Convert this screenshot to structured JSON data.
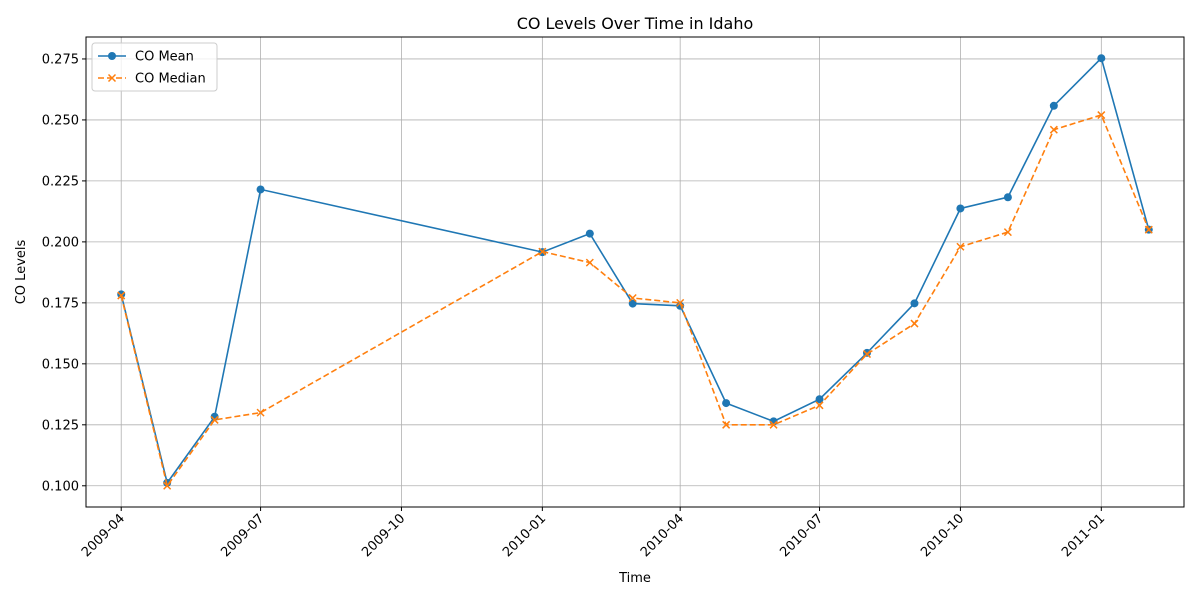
{
  "chart_data": {
    "type": "line",
    "title": "CO Levels Over Time in Idaho",
    "xlabel": "Time",
    "ylabel": "CO Levels",
    "x": [
      "2009-04-01",
      "2009-05-01",
      "2009-06-01",
      "2009-07-01",
      "2010-01-01",
      "2010-02-01",
      "2010-03-01",
      "2010-04-01",
      "2010-05-01",
      "2010-06-01",
      "2010-07-01",
      "2010-08-01",
      "2010-09-01",
      "2010-10-01",
      "2010-11-01",
      "2010-12-01",
      "2011-01-01",
      "2011-02-01"
    ],
    "series": [
      {
        "name": "CO Mean",
        "color": "#1f77b4",
        "marker": "circle",
        "linestyle": "solid",
        "values": [
          0.1785,
          0.1012,
          0.1283,
          0.2215,
          0.1958,
          0.2034,
          0.1747,
          0.1738,
          0.1339,
          0.1264,
          0.1355,
          0.1545,
          0.1748,
          0.2137,
          0.2183,
          0.2558,
          0.2753,
          0.205
        ]
      },
      {
        "name": "CO Median",
        "color": "#ff7f0e",
        "marker": "x",
        "linestyle": "dashed",
        "values": [
          0.178,
          0.1,
          0.127,
          0.13,
          0.196,
          0.1915,
          0.177,
          0.175,
          0.125,
          0.125,
          0.133,
          0.154,
          0.1665,
          0.198,
          0.204,
          0.246,
          0.252,
          0.205
        ]
      }
    ],
    "x_ticks": [
      "2009-04",
      "2009-07",
      "2009-10",
      "2010-01",
      "2010-04",
      "2010-07",
      "2010-10",
      "2011-01"
    ],
    "x_tick_dates": [
      "2009-04-01",
      "2009-07-01",
      "2009-10-01",
      "2010-01-01",
      "2010-04-01",
      "2010-07-01",
      "2010-10-01",
      "2011-01-01"
    ],
    "y_ticks": [
      "0.100",
      "0.125",
      "0.150",
      "0.175",
      "0.200",
      "0.225",
      "0.250",
      "0.275"
    ],
    "xlim": [
      "2009-03-09",
      "2011-02-24"
    ],
    "ylim": [
      0.0913,
      0.284
    ],
    "grid": true,
    "legend_position": "top-left"
  }
}
